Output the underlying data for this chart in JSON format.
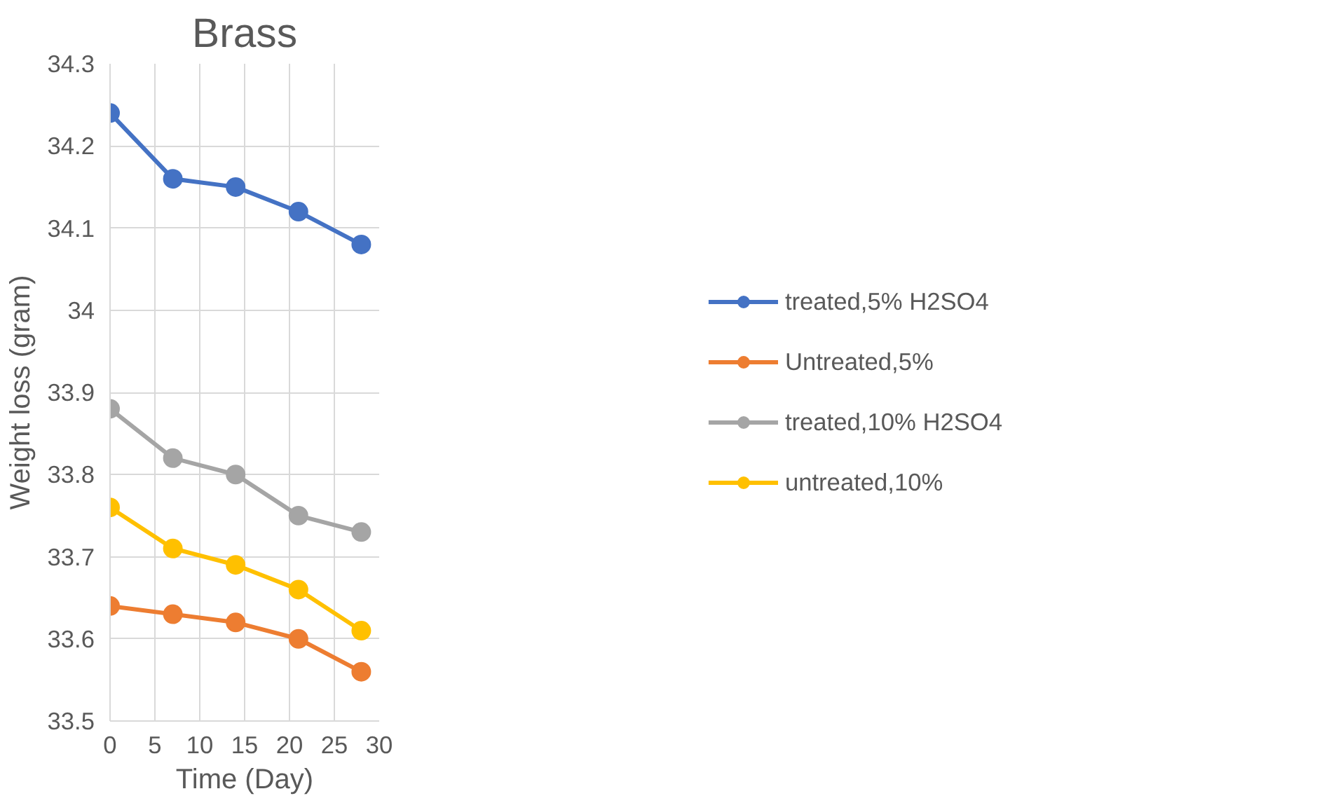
{
  "chart_data": {
    "type": "line",
    "title": "Brass",
    "xlabel": "Time (Day)",
    "ylabel": "Weight loss (gram)",
    "x": [
      0,
      7,
      14,
      21,
      28
    ],
    "series": [
      {
        "name": "treated,5% H2SO4",
        "color": "#4472c4",
        "values": [
          34.24,
          34.16,
          34.15,
          34.12,
          34.08
        ]
      },
      {
        "name": "Untreated,5%",
        "color": "#ed7d31",
        "values": [
          33.64,
          33.63,
          33.62,
          33.6,
          33.56
        ]
      },
      {
        "name": "treated,10% H2SO4",
        "color": "#a5a5a5",
        "values": [
          33.88,
          33.82,
          33.8,
          33.75,
          33.73
        ]
      },
      {
        "name": "untreated,10%",
        "color": "#ffc000",
        "values": [
          33.76,
          33.71,
          33.69,
          33.66,
          33.61
        ]
      }
    ],
    "xlim": [
      0,
      30
    ],
    "xticks": [
      0,
      5,
      10,
      15,
      20,
      25,
      30
    ],
    "ylim": [
      33.5,
      34.3
    ],
    "yticks": [
      33.5,
      33.6,
      33.7,
      33.8,
      33.9,
      34,
      34.1,
      34.2,
      34.3
    ],
    "grid": true,
    "legend": "right",
    "marker": "circle",
    "line_style": "solid"
  }
}
